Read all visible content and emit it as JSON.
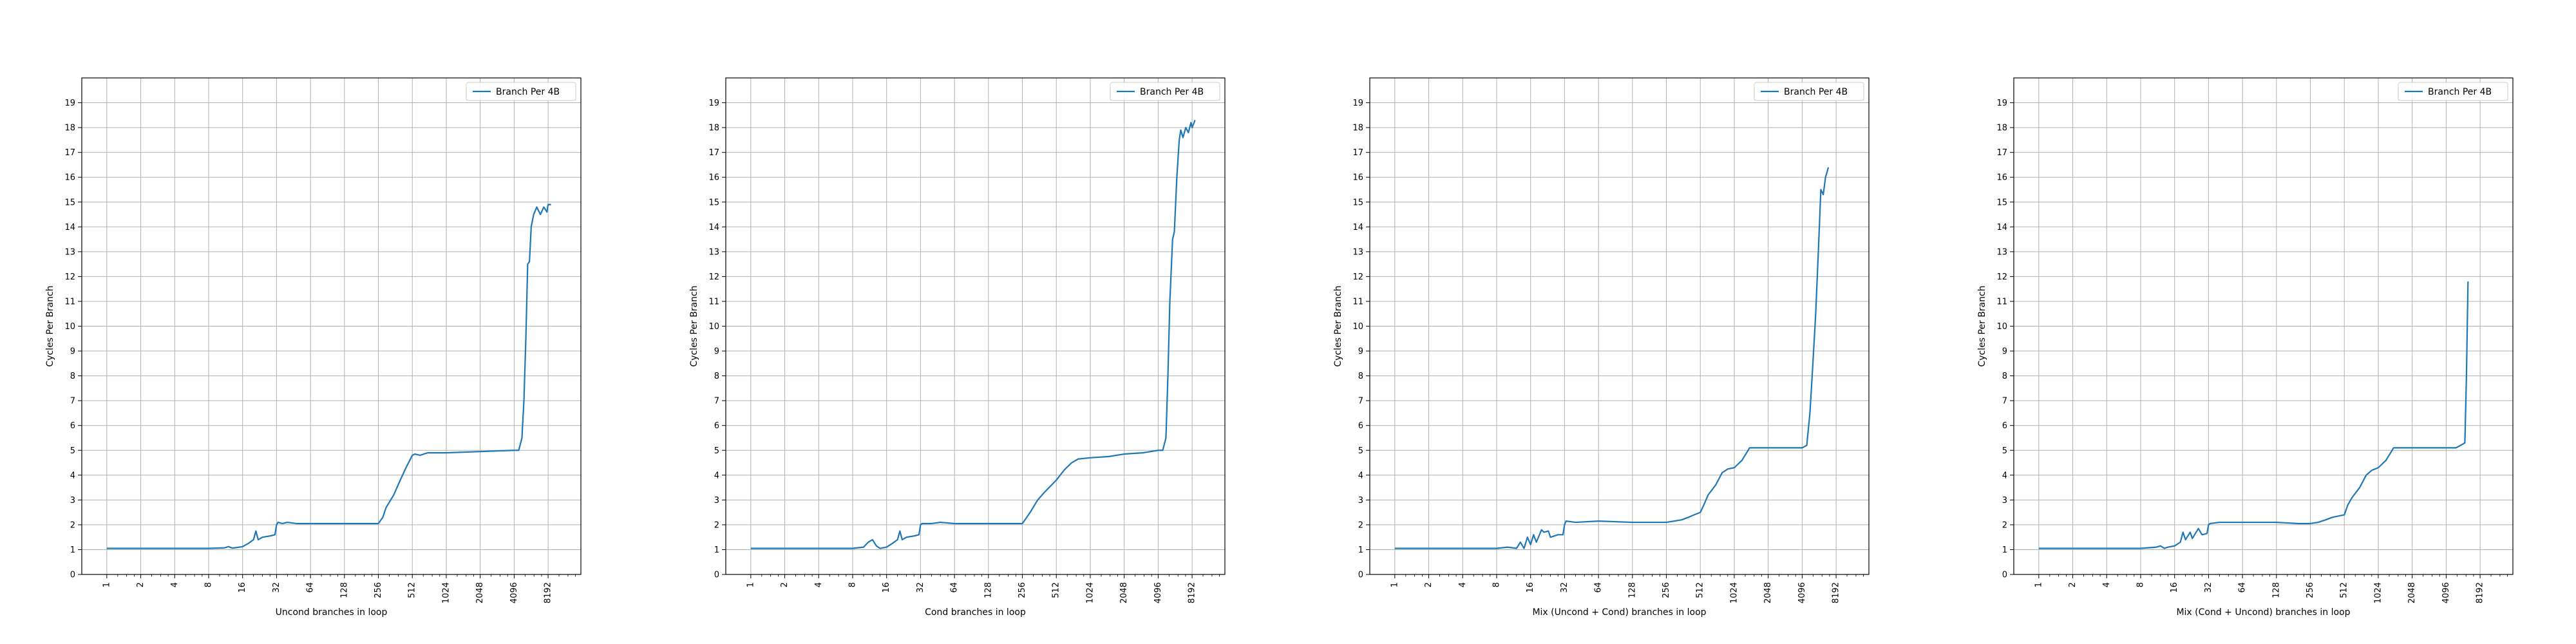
{
  "chart_data": [
    {
      "type": "line",
      "xlabel": "Uncond branches in loop",
      "ylabel": "Cycles Per Branch",
      "x_scale": "log2",
      "xticks": [
        1,
        2,
        4,
        8,
        16,
        32,
        64,
        128,
        256,
        512,
        1024,
        2048,
        4096,
        8192
      ],
      "yticks": [
        0,
        1,
        2,
        3,
        4,
        5,
        6,
        7,
        8,
        9,
        10,
        11,
        12,
        13,
        14,
        15,
        16,
        17,
        18,
        19
      ],
      "xlim": [
        0.6,
        16000
      ],
      "ylim": [
        0,
        20
      ],
      "grid": true,
      "legend_position": "upper right",
      "series": [
        {
          "name": "Branch Per 4B",
          "color": "#1f77b4",
          "points": [
            [
              1,
              1.05
            ],
            [
              2,
              1.05
            ],
            [
              4,
              1.05
            ],
            [
              8,
              1.05
            ],
            [
              11,
              1.07
            ],
            [
              12,
              1.12
            ],
            [
              13,
              1.06
            ],
            [
              14,
              1.08
            ],
            [
              16,
              1.12
            ],
            [
              18,
              1.25
            ],
            [
              20,
              1.4
            ],
            [
              21,
              1.75
            ],
            [
              22,
              1.4
            ],
            [
              24,
              1.5
            ],
            [
              28,
              1.55
            ],
            [
              31,
              1.6
            ],
            [
              32,
              2.0
            ],
            [
              33,
              2.1
            ],
            [
              36,
              2.05
            ],
            [
              40,
              2.1
            ],
            [
              48,
              2.05
            ],
            [
              64,
              2.05
            ],
            [
              128,
              2.05
            ],
            [
              200,
              2.05
            ],
            [
              256,
              2.05
            ],
            [
              280,
              2.3
            ],
            [
              300,
              2.7
            ],
            [
              350,
              3.2
            ],
            [
              400,
              3.8
            ],
            [
              450,
              4.3
            ],
            [
              512,
              4.8
            ],
            [
              540,
              4.85
            ],
            [
              600,
              4.8
            ],
            [
              700,
              4.9
            ],
            [
              1024,
              4.9
            ],
            [
              2048,
              4.95
            ],
            [
              4096,
              5.0
            ],
            [
              4500,
              5.0
            ],
            [
              4800,
              5.5
            ],
            [
              5000,
              7.0
            ],
            [
              5200,
              9.5
            ],
            [
              5400,
              12.5
            ],
            [
              5600,
              12.6
            ],
            [
              5800,
              14.0
            ],
            [
              6100,
              14.5
            ],
            [
              6500,
              14.8
            ],
            [
              7000,
              14.5
            ],
            [
              7500,
              14.8
            ],
            [
              8000,
              14.6
            ],
            [
              8192,
              14.9
            ],
            [
              8700,
              14.9
            ]
          ]
        }
      ]
    },
    {
      "type": "line",
      "xlabel": "Cond branches in loop",
      "ylabel": "Cycles Per Branch",
      "x_scale": "log2",
      "xticks": [
        1,
        2,
        4,
        8,
        16,
        32,
        64,
        128,
        256,
        512,
        1024,
        2048,
        4096,
        8192
      ],
      "yticks": [
        0,
        1,
        2,
        3,
        4,
        5,
        6,
        7,
        8,
        9,
        10,
        11,
        12,
        13,
        14,
        15,
        16,
        17,
        18,
        19
      ],
      "xlim": [
        0.6,
        16000
      ],
      "ylim": [
        0,
        20
      ],
      "grid": true,
      "legend_position": "upper right",
      "series": [
        {
          "name": "Branch Per 4B",
          "color": "#1f77b4",
          "points": [
            [
              1,
              1.05
            ],
            [
              2,
              1.05
            ],
            [
              4,
              1.05
            ],
            [
              8,
              1.05
            ],
            [
              10,
              1.1
            ],
            [
              11,
              1.3
            ],
            [
              12,
              1.4
            ],
            [
              13,
              1.15
            ],
            [
              14,
              1.05
            ],
            [
              16,
              1.1
            ],
            [
              18,
              1.25
            ],
            [
              20,
              1.4
            ],
            [
              21,
              1.75
            ],
            [
              22,
              1.4
            ],
            [
              24,
              1.5
            ],
            [
              28,
              1.55
            ],
            [
              31,
              1.6
            ],
            [
              32,
              2.0
            ],
            [
              33,
              2.05
            ],
            [
              40,
              2.05
            ],
            [
              48,
              2.1
            ],
            [
              64,
              2.05
            ],
            [
              128,
              2.05
            ],
            [
              200,
              2.05
            ],
            [
              256,
              2.05
            ],
            [
              300,
              2.5
            ],
            [
              350,
              3.0
            ],
            [
              400,
              3.3
            ],
            [
              512,
              3.8
            ],
            [
              600,
              4.2
            ],
            [
              700,
              4.5
            ],
            [
              800,
              4.65
            ],
            [
              1024,
              4.7
            ],
            [
              1500,
              4.75
            ],
            [
              2048,
              4.85
            ],
            [
              3000,
              4.9
            ],
            [
              4096,
              5.0
            ],
            [
              4500,
              5.0
            ],
            [
              4800,
              5.5
            ],
            [
              5000,
              8.0
            ],
            [
              5200,
              11.0
            ],
            [
              5500,
              13.5
            ],
            [
              5700,
              13.8
            ],
            [
              6000,
              16.0
            ],
            [
              6300,
              17.5
            ],
            [
              6500,
              17.9
            ],
            [
              6800,
              17.6
            ],
            [
              7200,
              18.0
            ],
            [
              7600,
              17.8
            ],
            [
              8000,
              18.2
            ],
            [
              8192,
              18.0
            ],
            [
              8700,
              18.3
            ]
          ]
        }
      ]
    },
    {
      "type": "line",
      "xlabel": "Mix (Uncond + Cond) branches in loop",
      "ylabel": "Cycles Per Branch",
      "x_scale": "log2",
      "xticks": [
        1,
        2,
        4,
        8,
        16,
        32,
        64,
        128,
        256,
        512,
        1024,
        2048,
        4096,
        8192
      ],
      "yticks": [
        0,
        1,
        2,
        3,
        4,
        5,
        6,
        7,
        8,
        9,
        10,
        11,
        12,
        13,
        14,
        15,
        16,
        17,
        18,
        19
      ],
      "xlim": [
        0.6,
        16000
      ],
      "ylim": [
        0,
        20
      ],
      "grid": true,
      "legend_position": "upper right",
      "series": [
        {
          "name": "Branch Per 4B",
          "color": "#1f77b4",
          "points": [
            [
              1,
              1.05
            ],
            [
              2,
              1.05
            ],
            [
              4,
              1.05
            ],
            [
              8,
              1.05
            ],
            [
              10,
              1.1
            ],
            [
              12,
              1.05
            ],
            [
              13,
              1.3
            ],
            [
              14,
              1.05
            ],
            [
              15,
              1.5
            ],
            [
              16,
              1.2
            ],
            [
              17,
              1.6
            ],
            [
              18,
              1.3
            ],
            [
              20,
              1.8
            ],
            [
              21,
              1.7
            ],
            [
              23,
              1.75
            ],
            [
              24,
              1.5
            ],
            [
              28,
              1.6
            ],
            [
              31,
              1.6
            ],
            [
              32,
              2.0
            ],
            [
              33,
              2.15
            ],
            [
              40,
              2.1
            ],
            [
              64,
              2.15
            ],
            [
              128,
              2.1
            ],
            [
              200,
              2.1
            ],
            [
              256,
              2.1
            ],
            [
              300,
              2.15
            ],
            [
              350,
              2.2
            ],
            [
              400,
              2.3
            ],
            [
              450,
              2.4
            ],
            [
              512,
              2.5
            ],
            [
              550,
              2.8
            ],
            [
              600,
              3.2
            ],
            [
              700,
              3.6
            ],
            [
              800,
              4.1
            ],
            [
              900,
              4.25
            ],
            [
              1024,
              4.3
            ],
            [
              1200,
              4.6
            ],
            [
              1400,
              5.1
            ],
            [
              2048,
              5.1
            ],
            [
              3000,
              5.1
            ],
            [
              4096,
              5.1
            ],
            [
              4500,
              5.2
            ],
            [
              4800,
              6.5
            ],
            [
              5100,
              8.5
            ],
            [
              5400,
              10.5
            ],
            [
              5700,
              13.0
            ],
            [
              6000,
              15.5
            ],
            [
              6300,
              15.3
            ],
            [
              6600,
              16.0
            ],
            [
              7000,
              16.4
            ]
          ]
        }
      ]
    },
    {
      "type": "line",
      "xlabel": "Mix (Cond + Uncond) branches in loop",
      "ylabel": "Cycles Per Branch",
      "x_scale": "log2",
      "xticks": [
        1,
        2,
        4,
        8,
        16,
        32,
        64,
        128,
        256,
        512,
        1024,
        2048,
        4096,
        8192
      ],
      "yticks": [
        0,
        1,
        2,
        3,
        4,
        5,
        6,
        7,
        8,
        9,
        10,
        11,
        12,
        13,
        14,
        15,
        16,
        17,
        18,
        19
      ],
      "xlim": [
        0.6,
        16000
      ],
      "ylim": [
        0,
        20
      ],
      "grid": true,
      "legend_position": "upper right",
      "series": [
        {
          "name": "Branch Per 4B",
          "color": "#1f77b4",
          "points": [
            [
              1,
              1.05
            ],
            [
              2,
              1.05
            ],
            [
              4,
              1.05
            ],
            [
              8,
              1.05
            ],
            [
              11,
              1.1
            ],
            [
              12,
              1.15
            ],
            [
              13,
              1.05
            ],
            [
              14,
              1.1
            ],
            [
              16,
              1.15
            ],
            [
              18,
              1.3
            ],
            [
              19,
              1.7
            ],
            [
              20,
              1.4
            ],
            [
              22,
              1.7
            ],
            [
              23,
              1.45
            ],
            [
              26,
              1.85
            ],
            [
              28,
              1.6
            ],
            [
              31,
              1.65
            ],
            [
              32,
              2.0
            ],
            [
              33,
              2.05
            ],
            [
              40,
              2.1
            ],
            [
              64,
              2.1
            ],
            [
              128,
              2.1
            ],
            [
              200,
              2.05
            ],
            [
              256,
              2.05
            ],
            [
              300,
              2.1
            ],
            [
              350,
              2.2
            ],
            [
              400,
              2.3
            ],
            [
              450,
              2.35
            ],
            [
              512,
              2.4
            ],
            [
              550,
              2.8
            ],
            [
              600,
              3.1
            ],
            [
              700,
              3.5
            ],
            [
              800,
              4.0
            ],
            [
              900,
              4.2
            ],
            [
              1024,
              4.3
            ],
            [
              1200,
              4.6
            ],
            [
              1400,
              5.1
            ],
            [
              2048,
              5.1
            ],
            [
              3000,
              5.1
            ],
            [
              4096,
              5.1
            ],
            [
              5000,
              5.1
            ],
            [
              5500,
              5.2
            ],
            [
              6000,
              5.3
            ],
            [
              6200,
              8.0
            ],
            [
              6400,
              11.8
            ]
          ]
        }
      ]
    }
  ]
}
